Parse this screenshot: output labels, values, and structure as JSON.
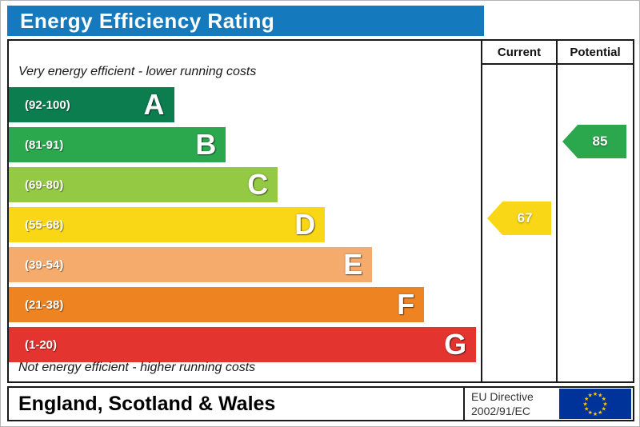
{
  "title": "Energy Efficiency Rating",
  "header": {
    "current": "Current",
    "potential": "Potential"
  },
  "notes": {
    "top": "Very energy efficient - lower running costs",
    "bottom": "Not energy efficient - higher running costs"
  },
  "chart_data": {
    "type": "bar",
    "title": "Energy Efficiency Rating",
    "bands": [
      {
        "letter": "A",
        "range": "(92-100)",
        "min": 92,
        "max": 100,
        "color": "#0b7d4f",
        "width_pct": 35
      },
      {
        "letter": "B",
        "range": "(81-91)",
        "min": 81,
        "max": 91,
        "color": "#2ba84d",
        "width_pct": 46
      },
      {
        "letter": "C",
        "range": "(69-80)",
        "min": 69,
        "max": 80,
        "color": "#94ca43",
        "width_pct": 57
      },
      {
        "letter": "D",
        "range": "(55-68)",
        "min": 55,
        "max": 68,
        "color": "#f9d616",
        "width_pct": 67
      },
      {
        "letter": "E",
        "range": "(39-54)",
        "min": 39,
        "max": 54,
        "color": "#f5ab6c",
        "width_pct": 77
      },
      {
        "letter": "F",
        "range": "(21-38)",
        "min": 21,
        "max": 38,
        "color": "#ee8322",
        "width_pct": 88
      },
      {
        "letter": "G",
        "range": "(1-20)",
        "min": 1,
        "max": 20,
        "color": "#e4342f",
        "width_pct": 99
      }
    ],
    "current": {
      "value": 67,
      "band": "D",
      "band_index": 3,
      "color": "#f9d616"
    },
    "potential": {
      "value": 85,
      "band": "B",
      "band_index": 1,
      "color": "#2ba84d"
    }
  },
  "footer": {
    "region": "England, Scotland & Wales",
    "directive_line1": "EU Directive",
    "directive_line2": "2002/91/EC"
  },
  "colors": {
    "title_bg": "#1479bd",
    "border": "#1a1a1a",
    "flag_bg": "#003399",
    "flag_star": "#ffcc00"
  }
}
